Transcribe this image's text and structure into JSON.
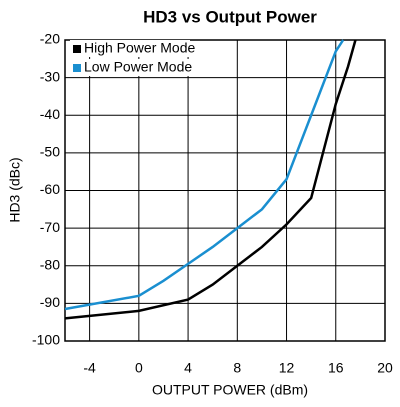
{
  "chart_data": {
    "type": "line",
    "title": "HD3 vs Output Power",
    "x_label": "OUTPUT POWER (dBm)",
    "y_label": "HD3 (dBc)",
    "xlim": [
      -6,
      20
    ],
    "xticks": [
      -4,
      0,
      4,
      8,
      12,
      16,
      20
    ],
    "ylim": [
      -100,
      -20
    ],
    "yticks": [
      -20,
      -30,
      -40,
      -50,
      -60,
      -70,
      -80,
      -90,
      -100
    ],
    "grid": true,
    "legend": "upper left",
    "series": [
      {
        "name": "High Power Mode",
        "color": "#000000",
        "x": [
          -6,
          0,
          4,
          6,
          8,
          10,
          12,
          14,
          16,
          17,
          17.6
        ],
        "values": [
          -94,
          -92,
          -89,
          -85,
          -80,
          -75,
          -69,
          -62,
          -37,
          -27,
          -20
        ]
      },
      {
        "name": "Low Power Mode",
        "color": "#1a8fd0",
        "x": [
          -6,
          0,
          2,
          4,
          6,
          8,
          10,
          12,
          14,
          16,
          16.6
        ],
        "values": [
          -91.5,
          -88,
          -84,
          -79.5,
          -75,
          -70,
          -65,
          -57,
          -40,
          -23,
          -20
        ]
      }
    ]
  }
}
